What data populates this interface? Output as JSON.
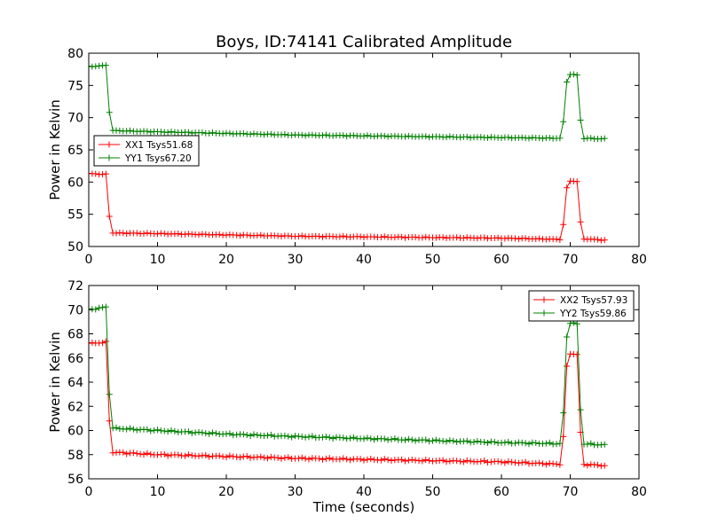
{
  "chart_data": [
    {
      "type": "line",
      "title": "Boys, ID:74141 Calibrated Amplitude",
      "xlabel": "",
      "ylabel": "Power in Kelvin",
      "xlim": [
        0,
        80
      ],
      "ylim": [
        50,
        80
      ],
      "xticks": [
        "0",
        "10",
        "20",
        "30",
        "40",
        "50",
        "60",
        "70",
        "80"
      ],
      "yticks": [
        "50",
        "55",
        "60",
        "65",
        "70",
        "75",
        "80"
      ],
      "legend_position": "center-left",
      "x_range": [
        0,
        75
      ],
      "sample_step": 0.5,
      "series": [
        {
          "name": "XX1 Tsys51.68",
          "color": "#ff0000",
          "profile": [
            [
              0,
              61.3
            ],
            [
              2.5,
              61.2
            ],
            [
              3.2,
              52.1
            ],
            [
              10,
              52.0
            ],
            [
              30,
              51.6
            ],
            [
              60,
              51.3
            ],
            [
              68.8,
              51.1
            ],
            [
              69.6,
              60.2
            ],
            [
              71,
              60.1
            ],
            [
              71.7,
              51.2
            ],
            [
              75,
              51.0
            ]
          ]
        },
        {
          "name": "YY1 Tsys67.20",
          "color": "#008000",
          "profile": [
            [
              0,
              77.9
            ],
            [
              2.5,
              78.1
            ],
            [
              3.2,
              68.0
            ],
            [
              10,
              67.8
            ],
            [
              30,
              67.3
            ],
            [
              60,
              66.9
            ],
            [
              68.8,
              66.8
            ],
            [
              69.6,
              76.8
            ],
            [
              71,
              76.6
            ],
            [
              71.7,
              66.8
            ],
            [
              75,
              66.7
            ]
          ]
        }
      ]
    },
    {
      "type": "line",
      "title": "",
      "xlabel": "Time (seconds)",
      "ylabel": "Power in Kelvin",
      "xlim": [
        0,
        80
      ],
      "ylim": [
        56,
        72
      ],
      "xticks": [
        "0",
        "10",
        "20",
        "30",
        "40",
        "50",
        "60",
        "70",
        "80"
      ],
      "yticks": [
        "56",
        "58",
        "60",
        "62",
        "64",
        "66",
        "68",
        "70",
        "72"
      ],
      "legend_position": "top-right",
      "x_range": [
        0,
        75
      ],
      "sample_step": 0.5,
      "series": [
        {
          "name": "XX2 Tsys57.93",
          "color": "#ff0000",
          "profile": [
            [
              0,
              67.2
            ],
            [
              2.5,
              67.3
            ],
            [
              3.2,
              58.2
            ],
            [
              10,
              58.0
            ],
            [
              30,
              57.7
            ],
            [
              60,
              57.4
            ],
            [
              68.8,
              57.2
            ],
            [
              69.6,
              66.4
            ],
            [
              71,
              66.3
            ],
            [
              71.7,
              57.2
            ],
            [
              75,
              57.1
            ]
          ]
        },
        {
          "name": "YY2 Tsys59.86",
          "color": "#008000",
          "profile": [
            [
              0,
              70.0
            ],
            [
              2.5,
              70.2
            ],
            [
              3.2,
              60.2
            ],
            [
              10,
              60.0
            ],
            [
              20,
              59.7
            ],
            [
              30,
              59.5
            ],
            [
              60,
              59.0
            ],
            [
              68.8,
              58.9
            ],
            [
              69.6,
              69.0
            ],
            [
              71,
              68.8
            ],
            [
              71.7,
              58.9
            ],
            [
              75,
              58.8
            ]
          ]
        }
      ]
    }
  ]
}
